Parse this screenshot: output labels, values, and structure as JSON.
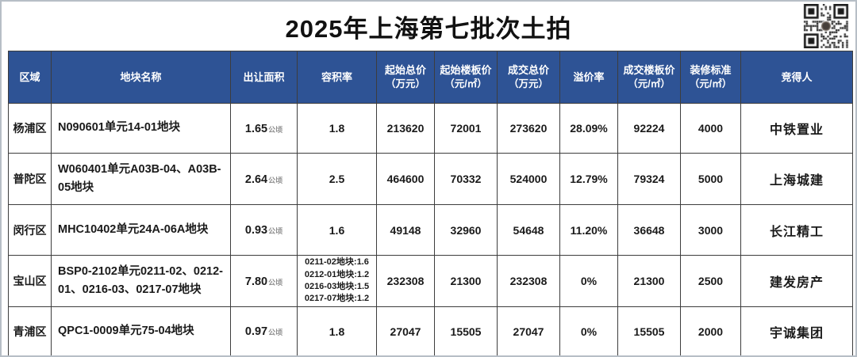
{
  "title": "2025年上海第七批次土拍",
  "colors": {
    "header_bg": "#2e5395",
    "header_text": "#ffffff",
    "body_text": "#1a1a1a",
    "unit_text": "#8d8d8d"
  },
  "columns": [
    {
      "label": "区域"
    },
    {
      "label": "地块名称"
    },
    {
      "label": "出让面积"
    },
    {
      "label": "容积率"
    },
    {
      "label": "起始总价",
      "sub": "（万元）"
    },
    {
      "label": "起始楼板价",
      "sub": "（元/㎡）"
    },
    {
      "label": "成交总价",
      "sub": "（万元）"
    },
    {
      "label": "溢价率"
    },
    {
      "label": "成交楼板价",
      "sub": "（元/㎡）"
    },
    {
      "label": "装修标准",
      "sub": "（元/㎡）"
    },
    {
      "label": "竞得人"
    }
  ],
  "rows": [
    {
      "region": "杨浦区",
      "plot": "N090601单元14-01地块",
      "area": "1.65",
      "area_unit": "公顷",
      "far": "1.8",
      "start_total": "213620",
      "start_floor": "72001",
      "deal_total": "273620",
      "premium": "28.09%",
      "deal_floor": "92224",
      "decoration": "4000",
      "winner": "中铁置业"
    },
    {
      "region": "普陀区",
      "plot": "W060401单元A03B-04、A03B-05地块",
      "area": "2.64",
      "area_unit": "公顷",
      "far": "2.5",
      "start_total": "464600",
      "start_floor": "70332",
      "deal_total": "524000",
      "premium": "12.79%",
      "deal_floor": "79324",
      "decoration": "5000",
      "winner": "上海城建"
    },
    {
      "region": "闵行区",
      "plot": "MHC10402单元24A-06A地块",
      "area": "0.93",
      "area_unit": "公顷",
      "far": "1.6",
      "start_total": "49148",
      "start_floor": "32960",
      "deal_total": "54648",
      "premium": "11.20%",
      "deal_floor": "36648",
      "decoration": "3000",
      "winner": "长江精工"
    },
    {
      "region": "宝山区",
      "plot": "BSP0-2102单元0211-02、0212-01、0216-03、0217-07地块",
      "area": "7.80",
      "area_unit": "公顷",
      "far_lines": [
        "0211-02地块:1.6",
        "0212-01地块:1.2",
        "0216-03地块:1.5",
        "0217-07地块:1.2"
      ],
      "start_total": "232308",
      "start_floor": "21300",
      "deal_total": "232308",
      "premium": "0%",
      "deal_floor": "21300",
      "decoration": "2500",
      "winner": "建发房产"
    },
    {
      "region": "青浦区",
      "plot": "QPC1-0009单元75-04地块",
      "area": "0.97",
      "area_unit": "公顷",
      "far": "1.8",
      "start_total": "27047",
      "start_floor": "15505",
      "deal_total": "27047",
      "premium": "0%",
      "deal_floor": "15505",
      "decoration": "2000",
      "winner": "宇诚集团"
    }
  ]
}
